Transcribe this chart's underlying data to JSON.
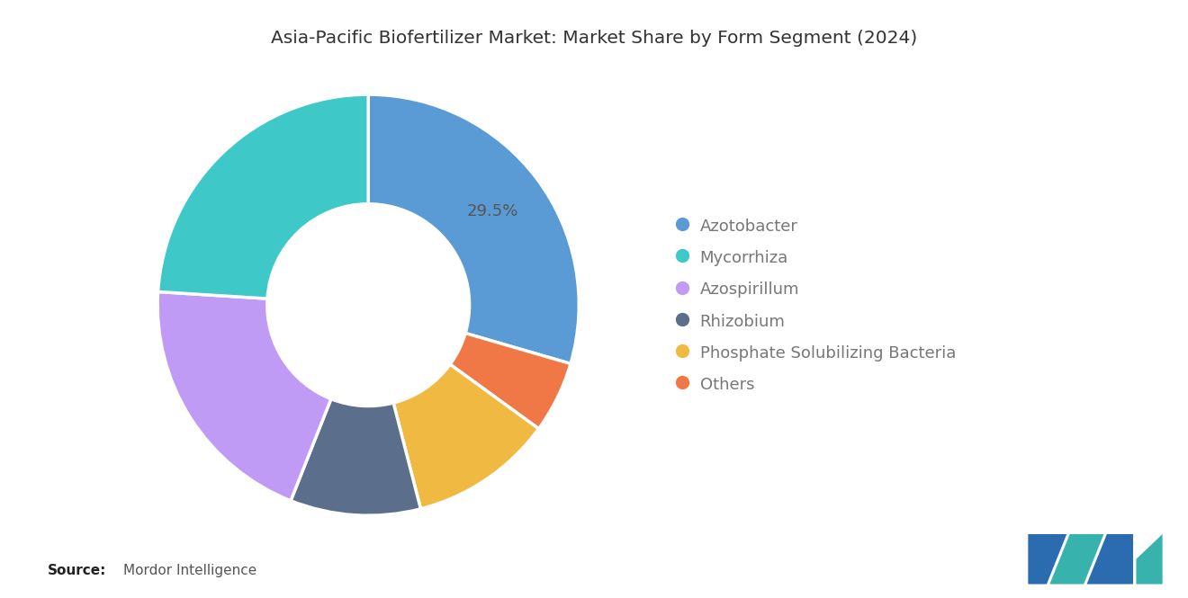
{
  "title": "Asia-Pacific Biofertilizer Market: Market Share by Form Segment (2024)",
  "segments": [
    "Azotobacter",
    "Others",
    "Phosphate Solubilizing Bacteria",
    "Rhizobium",
    "Azospirillum",
    "Mycorrhiza"
  ],
  "values": [
    29.5,
    5.5,
    11.0,
    10.0,
    20.0,
    24.0
  ],
  "colors": [
    "#5B9BD5",
    "#F07846",
    "#F0B942",
    "#5B6E8C",
    "#C09BF5",
    "#3EC8C8"
  ],
  "label_text": "29.5%",
  "legend_order": [
    "Azotobacter",
    "Mycorrhiza",
    "Azospirillum",
    "Rhizobium",
    "Phosphate Solubilizing Bacteria",
    "Others"
  ],
  "source_bold": "Source:",
  "source_text": "Mordor Intelligence",
  "background_color": "#ffffff",
  "title_fontsize": 14.5,
  "legend_fontsize": 13,
  "label_fontsize": 13,
  "logo_dark": "#2B6CB0",
  "logo_teal": "#38B2AC"
}
